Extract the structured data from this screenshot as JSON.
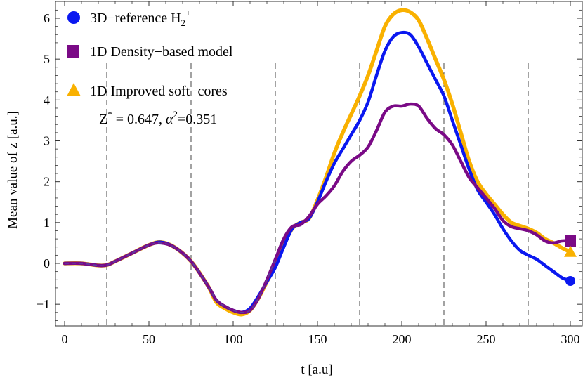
{
  "chart_data": {
    "type": "line",
    "title": "",
    "xlabel": "t  [a.u]",
    "ylabel": "Mean value of  z   [a.u.]",
    "xlim": [
      -8,
      304
    ],
    "ylim": [
      -1.55,
      6.45
    ],
    "xticks": [
      0,
      50,
      100,
      150,
      200,
      250,
      300
    ],
    "yticks": [
      -1,
      0,
      1,
      2,
      3,
      4,
      5,
      6
    ],
    "vlines": [
      25,
      75,
      125,
      175,
      225,
      275
    ],
    "legend_position": "top-left",
    "annotation": {
      "prefix": "Z",
      "sup1": "*",
      "mid": " = 0.647, ",
      "alpha": "α",
      "sup2": "2",
      "suffix": "=0.351"
    },
    "series": [
      {
        "name": "3D-reference H2+",
        "label_main": "3D−reference H",
        "label_sub": "2",
        "label_sup": "+",
        "color": "#0a18f0",
        "marker": "circle",
        "x": [
          0,
          10,
          20,
          25,
          30,
          40,
          50,
          57,
          65,
          75,
          85,
          90,
          95,
          100,
          105,
          110,
          115,
          120,
          125,
          130,
          135,
          140,
          145,
          150,
          155,
          160,
          165,
          170,
          175,
          180,
          185,
          190,
          195,
          200,
          205,
          210,
          215,
          220,
          225,
          230,
          235,
          240,
          245,
          250,
          255,
          260,
          265,
          270,
          275,
          280,
          285,
          290,
          295,
          300
        ],
        "y": [
          0,
          0,
          -0.05,
          -0.04,
          0.05,
          0.25,
          0.45,
          0.52,
          0.4,
          0.05,
          -0.55,
          -0.9,
          -1.05,
          -1.15,
          -1.2,
          -1.1,
          -0.8,
          -0.45,
          -0.1,
          0.4,
          0.85,
          1.0,
          1.1,
          1.5,
          2.0,
          2.45,
          2.8,
          3.15,
          3.5,
          3.95,
          4.6,
          5.2,
          5.55,
          5.65,
          5.6,
          5.3,
          4.9,
          4.5,
          4.1,
          3.5,
          2.9,
          2.3,
          1.8,
          1.5,
          1.2,
          0.85,
          0.55,
          0.32,
          0.2,
          0.1,
          -0.05,
          -0.2,
          -0.35,
          -0.43
        ]
      },
      {
        "name": "1D Density-based model",
        "label_main": "1D Density−based model",
        "color": "#7a0a86",
        "marker": "square",
        "x": [
          0,
          10,
          20,
          25,
          30,
          40,
          50,
          57,
          65,
          75,
          85,
          90,
          95,
          100,
          105,
          110,
          115,
          120,
          125,
          130,
          135,
          140,
          145,
          150,
          155,
          160,
          165,
          170,
          175,
          180,
          185,
          190,
          195,
          200,
          205,
          210,
          215,
          220,
          225,
          230,
          235,
          240,
          245,
          250,
          255,
          260,
          265,
          270,
          275,
          280,
          285,
          290,
          295,
          300
        ],
        "y": [
          0,
          0,
          -0.05,
          -0.04,
          0.05,
          0.25,
          0.45,
          0.5,
          0.4,
          0.05,
          -0.55,
          -0.9,
          -1.05,
          -1.15,
          -1.2,
          -1.15,
          -0.85,
          -0.4,
          0.1,
          0.6,
          0.9,
          0.95,
          1.15,
          1.45,
          1.65,
          1.9,
          2.25,
          2.5,
          2.65,
          2.85,
          3.25,
          3.7,
          3.85,
          3.85,
          3.9,
          3.85,
          3.55,
          3.3,
          3.15,
          2.9,
          2.5,
          2.1,
          1.85,
          1.6,
          1.35,
          1.05,
          0.9,
          0.85,
          0.8,
          0.7,
          0.55,
          0.5,
          0.55,
          0.55
        ]
      },
      {
        "name": "1D Improved soft-cores",
        "label_main": "1D Improved soft−cores",
        "color": "#f9b100",
        "marker": "triangle",
        "x": [
          0,
          10,
          20,
          25,
          30,
          40,
          50,
          57,
          65,
          75,
          85,
          90,
          95,
          100,
          105,
          110,
          115,
          120,
          125,
          130,
          135,
          140,
          145,
          150,
          155,
          160,
          165,
          170,
          175,
          180,
          185,
          190,
          195,
          200,
          205,
          210,
          215,
          220,
          225,
          230,
          235,
          240,
          245,
          250,
          255,
          260,
          265,
          270,
          275,
          280,
          285,
          290,
          295,
          300
        ],
        "y": [
          0,
          0,
          -0.05,
          -0.04,
          0.05,
          0.25,
          0.45,
          0.52,
          0.4,
          0.05,
          -0.55,
          -0.95,
          -1.1,
          -1.2,
          -1.25,
          -1.15,
          -0.85,
          -0.45,
          -0.05,
          0.45,
          0.85,
          1.0,
          1.1,
          1.55,
          2.1,
          2.7,
          3.2,
          3.65,
          4.1,
          4.6,
          5.2,
          5.8,
          6.1,
          6.2,
          6.15,
          5.95,
          5.5,
          5.0,
          4.5,
          3.9,
          3.2,
          2.5,
          2.0,
          1.7,
          1.45,
          1.2,
          1.0,
          0.92,
          0.85,
          0.75,
          0.6,
          0.5,
          0.38,
          0.28
        ]
      }
    ]
  }
}
